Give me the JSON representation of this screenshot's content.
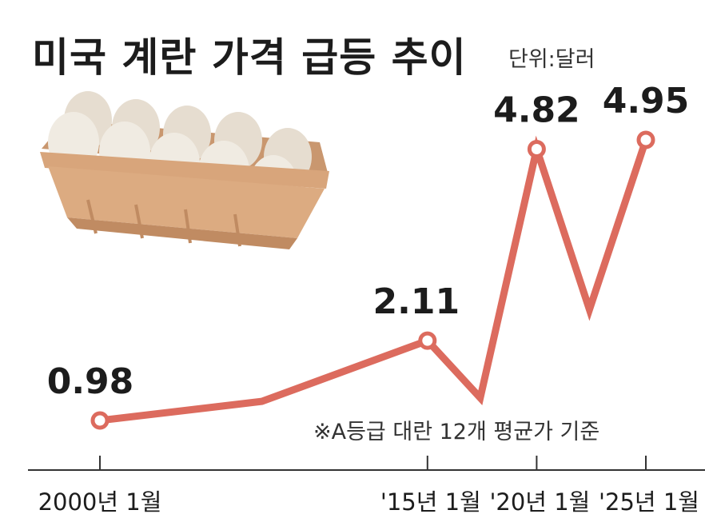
{
  "title": "미국 계란 가격 급등 추이",
  "unit_label": "단위:달러",
  "note": "※A등급 대란 12개 평균가 기준",
  "colors": {
    "line": "#dc6b5e",
    "axis": "#333333",
    "text": "#1c1c1c",
    "egg": "#f0ebe2",
    "carton": "#dcab81"
  },
  "chart_data": {
    "type": "line",
    "title": "미국 계란 가격 급등 추이",
    "ylabel": "단위:달러",
    "x_tick_labels": [
      "2000년 1월",
      "'15년 1월",
      "'20년 1월",
      "'25년 1월"
    ],
    "x": [
      "2000-01",
      "2007-06",
      "2015-01",
      "2017-06",
      "2020-01",
      "2022-06",
      "2025-01"
    ],
    "series": [
      {
        "values": [
          0.98,
          1.25,
          2.11,
          1.3,
          4.82,
          2.55,
          4.95
        ]
      }
    ],
    "data_labels": [
      {
        "x": "2000-01",
        "text": "0.98"
      },
      {
        "x": "2015-01",
        "text": "2.11"
      },
      {
        "x": "2020-01",
        "text": "4.82"
      },
      {
        "x": "2025-01",
        "text": "4.95"
      }
    ],
    "highlighted_points": [
      "2000-01",
      "2015-01",
      "2020-01",
      "2025-01"
    ],
    "grid": false
  }
}
